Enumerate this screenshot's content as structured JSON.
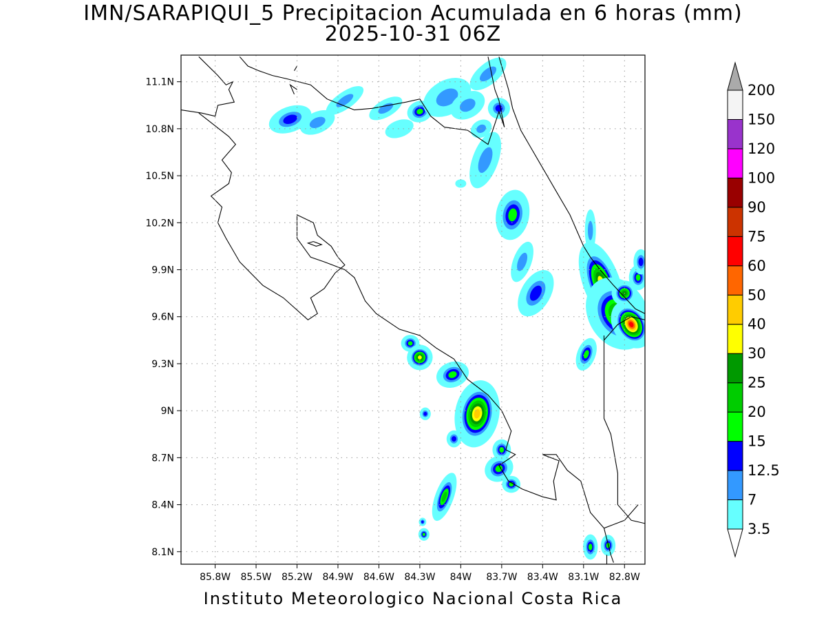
{
  "title": {
    "line1": "IMN/SARAPIQUI_5 Precipitacion Acumulada en 6 horas (mm)",
    "line2": "2025-10-31 06Z"
  },
  "footer": "Instituto Meteorologico Nacional Costa Rica",
  "map": {
    "lon_range": [
      -86.05,
      -82.65
    ],
    "lat_range": [
      8.02,
      11.27
    ],
    "lon_ticks": [
      -85.8,
      -85.5,
      -85.2,
      -84.9,
      -84.6,
      -84.3,
      -84.0,
      -83.7,
      -83.4,
      -83.1,
      -82.8
    ],
    "lon_labels": [
      "85.8W",
      "85.5W",
      "85.2W",
      "84.9W",
      "84.6W",
      "84.3W",
      "84W",
      "83.7W",
      "83.4W",
      "83.1W",
      "82.8W"
    ],
    "lat_ticks": [
      8.1,
      8.4,
      8.7,
      9.0,
      9.3,
      9.6,
      9.9,
      10.2,
      10.5,
      10.8,
      11.1
    ],
    "lat_labels": [
      "8.1N",
      "8.4N",
      "8.7N",
      "9N",
      "9.3N",
      "9.6N",
      "9.9N",
      "10.2N",
      "10.5N",
      "10.8N",
      "11.1N"
    ],
    "grid": "dotted"
  },
  "colorbar": {
    "labels": [
      "3.5",
      "7",
      "12.5",
      "15",
      "20",
      "25",
      "30",
      "40",
      "50",
      "60",
      "75",
      "90",
      "100",
      "120",
      "150",
      "200"
    ],
    "colors": [
      "#66ffff",
      "#3399ff",
      "#0000ff",
      "#00ff00",
      "#00cc00",
      "#009900",
      "#ffff00",
      "#ffcc00",
      "#ff6600",
      "#ff0000",
      "#cc3300",
      "#990000",
      "#ff00ff",
      "#9933cc",
      "#f4f4f4"
    ],
    "arrow_bottom": "#ffffff",
    "arrow_top": "#aaaaaa"
  },
  "precip_cells": [
    {
      "lon": -85.25,
      "lat": 10.86,
      "rx": 0.12,
      "ry": 0.06,
      "rot": -20,
      "level": 2
    },
    {
      "lon": -85.05,
      "lat": 10.84,
      "rx": 0.1,
      "ry": 0.05,
      "rot": -25,
      "level": 1
    },
    {
      "lon": -84.85,
      "lat": 10.98,
      "rx": 0.12,
      "ry": 0.04,
      "rot": -35,
      "level": 1
    },
    {
      "lon": -84.55,
      "lat": 10.93,
      "rx": 0.1,
      "ry": 0.04,
      "rot": -30,
      "level": 1
    },
    {
      "lon": -84.3,
      "lat": 10.91,
      "rx": 0.07,
      "ry": 0.05,
      "rot": -20,
      "level": 3
    },
    {
      "lon": -84.1,
      "lat": 11.0,
      "rx": 0.14,
      "ry": 0.08,
      "rot": -30,
      "level": 1
    },
    {
      "lon": -83.95,
      "lat": 10.95,
      "rx": 0.1,
      "ry": 0.06,
      "rot": -30,
      "level": 1
    },
    {
      "lon": -83.8,
      "lat": 11.15,
      "rx": 0.12,
      "ry": 0.05,
      "rot": -40,
      "level": 1
    },
    {
      "lon": -83.72,
      "lat": 10.93,
      "rx": 0.06,
      "ry": 0.05,
      "rot": 0,
      "level": 2
    },
    {
      "lon": -84.45,
      "lat": 10.8,
      "rx": 0.08,
      "ry": 0.04,
      "rot": -20,
      "level": 0
    },
    {
      "lon": -83.85,
      "lat": 10.8,
      "rx": 0.06,
      "ry": 0.04,
      "rot": -30,
      "level": 1
    },
    {
      "lon": -84.0,
      "lat": 10.45,
      "rx": 0.03,
      "ry": 0.02,
      "rot": 0,
      "level": 0
    },
    {
      "lon": -83.82,
      "lat": 10.6,
      "rx": 0.07,
      "ry": 0.14,
      "rot": 20,
      "level": 1
    },
    {
      "lon": -83.62,
      "lat": 10.25,
      "rx": 0.09,
      "ry": 0.12,
      "rot": 10,
      "level": 3
    },
    {
      "lon": -83.55,
      "lat": 9.95,
      "rx": 0.05,
      "ry": 0.1,
      "rot": 20,
      "level": 1
    },
    {
      "lon": -83.45,
      "lat": 9.75,
      "rx": 0.08,
      "ry": 0.12,
      "rot": 30,
      "level": 2
    },
    {
      "lon": -83.05,
      "lat": 10.15,
      "rx": 0.03,
      "ry": 0.1,
      "rot": 0,
      "level": 1
    },
    {
      "lon": -82.97,
      "lat": 9.82,
      "rx": 0.1,
      "ry": 0.2,
      "rot": -20,
      "level": 6
    },
    {
      "lon": -82.85,
      "lat": 9.62,
      "rx": 0.16,
      "ry": 0.18,
      "rot": -30,
      "level": 5
    },
    {
      "lon": -82.75,
      "lat": 9.55,
      "rx": 0.1,
      "ry": 0.12,
      "rot": -30,
      "level": 9
    },
    {
      "lon": -82.8,
      "lat": 9.75,
      "rx": 0.07,
      "ry": 0.06,
      "rot": 0,
      "level": 5
    },
    {
      "lon": -82.7,
      "lat": 9.85,
      "rx": 0.05,
      "ry": 0.06,
      "rot": 0,
      "level": 3
    },
    {
      "lon": -83.08,
      "lat": 9.36,
      "rx": 0.05,
      "ry": 0.08,
      "rot": 20,
      "level": 3
    },
    {
      "lon": -84.37,
      "lat": 9.43,
      "rx": 0.05,
      "ry": 0.04,
      "rot": 0,
      "level": 3
    },
    {
      "lon": -84.3,
      "lat": 9.34,
      "rx": 0.07,
      "ry": 0.06,
      "rot": -20,
      "level": 6
    },
    {
      "lon": -84.06,
      "lat": 9.23,
      "rx": 0.09,
      "ry": 0.06,
      "rot": -20,
      "level": 3
    },
    {
      "lon": -83.88,
      "lat": 8.98,
      "rx": 0.12,
      "ry": 0.16,
      "rot": 10,
      "level": 7
    },
    {
      "lon": -84.26,
      "lat": 8.98,
      "rx": 0.03,
      "ry": 0.03,
      "rot": 0,
      "level": 2
    },
    {
      "lon": -84.05,
      "lat": 8.82,
      "rx": 0.04,
      "ry": 0.04,
      "rot": 0,
      "level": 2
    },
    {
      "lon": -83.7,
      "lat": 8.75,
      "rx": 0.05,
      "ry": 0.05,
      "rot": 0,
      "level": 3
    },
    {
      "lon": -83.72,
      "lat": 8.63,
      "rx": 0.08,
      "ry": 0.06,
      "rot": -30,
      "level": 3
    },
    {
      "lon": -83.63,
      "lat": 8.53,
      "rx": 0.05,
      "ry": 0.04,
      "rot": 0,
      "level": 3
    },
    {
      "lon": -84.12,
      "lat": 8.45,
      "rx": 0.05,
      "ry": 0.12,
      "rot": 20,
      "level": 4
    },
    {
      "lon": -84.28,
      "lat": 8.29,
      "rx": 0.02,
      "ry": 0.02,
      "rot": 0,
      "level": 2
    },
    {
      "lon": -84.27,
      "lat": 8.21,
      "rx": 0.03,
      "ry": 0.03,
      "rot": 0,
      "level": 3
    },
    {
      "lon": -83.05,
      "lat": 8.13,
      "rx": 0.04,
      "ry": 0.06,
      "rot": 0,
      "level": 3
    },
    {
      "lon": -82.92,
      "lat": 8.14,
      "rx": 0.04,
      "ry": 0.05,
      "rot": 0,
      "level": 3
    },
    {
      "lon": -82.68,
      "lat": 9.95,
      "rx": 0.04,
      "ry": 0.06,
      "rot": 0,
      "level": 2
    }
  ],
  "coastlines": [
    [
      [
        -85.92,
        11.26
      ],
      [
        -85.78,
        11.14
      ],
      [
        -85.72,
        11.08
      ],
      [
        -85.67,
        11.1
      ],
      [
        -85.7,
        11.05
      ],
      [
        -85.66,
        10.97
      ],
      [
        -85.78,
        10.95
      ],
      [
        -85.8,
        10.88
      ],
      [
        -85.9,
        10.9
      ],
      [
        -86.05,
        10.92
      ]
    ],
    [
      [
        -85.62,
        11.26
      ],
      [
        -85.56,
        11.2
      ],
      [
        -85.48,
        11.17
      ],
      [
        -85.38,
        11.14
      ],
      [
        -85.28,
        11.12
      ],
      [
        -85.1,
        11.08
      ],
      [
        -84.98,
        10.99
      ],
      [
        -84.78,
        10.92
      ],
      [
        -84.65,
        10.93
      ],
      [
        -84.4,
        10.97
      ],
      [
        -84.3,
        10.99
      ],
      [
        -84.22,
        10.88
      ],
      [
        -84.12,
        10.81
      ],
      [
        -83.95,
        10.79
      ],
      [
        -83.85,
        10.73
      ],
      [
        -83.8,
        10.7
      ],
      [
        -83.72,
        10.91
      ],
      [
        -83.68,
        10.81
      ],
      [
        -83.72,
        10.98
      ],
      [
        -83.75,
        11.05
      ],
      [
        -83.8,
        11.26
      ]
    ],
    [
      [
        -85.92,
        10.9
      ],
      [
        -85.7,
        10.75
      ],
      [
        -85.65,
        10.7
      ],
      [
        -85.75,
        10.6
      ],
      [
        -85.68,
        10.52
      ],
      [
        -85.7,
        10.45
      ],
      [
        -85.83,
        10.37
      ],
      [
        -85.75,
        10.3
      ],
      [
        -85.78,
        10.2
      ],
      [
        -85.72,
        10.1
      ],
      [
        -85.62,
        9.95
      ],
      [
        -85.45,
        9.8
      ],
      [
        -85.3,
        9.72
      ],
      [
        -85.12,
        9.58
      ],
      [
        -85.05,
        9.62
      ],
      [
        -85.1,
        9.72
      ],
      [
        -85.0,
        9.78
      ],
      [
        -84.92,
        9.88
      ],
      [
        -84.85,
        9.93
      ],
      [
        -84.9,
        9.98
      ],
      [
        -84.95,
        10.05
      ],
      [
        -85.05,
        10.12
      ],
      [
        -85.08,
        10.2
      ],
      [
        -85.2,
        10.25
      ],
      [
        -85.2,
        10.1
      ],
      [
        -85.1,
        9.98
      ],
      [
        -85.0,
        9.95
      ],
      [
        -84.85,
        9.9
      ],
      [
        -84.78,
        9.85
      ],
      [
        -84.7,
        9.7
      ],
      [
        -84.62,
        9.62
      ],
      [
        -84.45,
        9.52
      ],
      [
        -84.3,
        9.48
      ],
      [
        -84.18,
        9.4
      ],
      [
        -84.05,
        9.33
      ],
      [
        -83.95,
        9.2
      ],
      [
        -83.8,
        9.1
      ],
      [
        -83.7,
        9.0
      ],
      [
        -83.63,
        8.87
      ],
      [
        -83.67,
        8.75
      ],
      [
        -83.6,
        8.72
      ],
      [
        -83.72,
        8.65
      ],
      [
        -83.65,
        8.55
      ],
      [
        -83.55,
        8.5
      ],
      [
        -83.4,
        8.45
      ],
      [
        -83.3,
        8.43
      ],
      [
        -83.32,
        8.55
      ],
      [
        -83.28,
        8.68
      ],
      [
        -83.4,
        8.72
      ],
      [
        -83.3,
        8.72
      ],
      [
        -83.22,
        8.62
      ],
      [
        -83.12,
        8.55
      ],
      [
        -83.05,
        8.35
      ],
      [
        -82.95,
        8.25
      ],
      [
        -82.9,
        8.08
      ],
      [
        -82.88,
        8.03
      ]
    ],
    [
      [
        -82.7,
        8.4
      ],
      [
        -82.8,
        8.3
      ],
      [
        -82.95,
        8.25
      ]
    ],
    [
      [
        -85.22,
        11.17
      ],
      [
        -85.2,
        11.2
      ]
    ],
    [
      [
        -83.72,
        11.26
      ],
      [
        -83.65,
        11.05
      ],
      [
        -83.62,
        10.93
      ],
      [
        -83.56,
        10.79
      ],
      [
        -83.5,
        10.7
      ],
      [
        -83.4,
        10.55
      ],
      [
        -83.3,
        10.4
      ],
      [
        -83.2,
        10.25
      ],
      [
        -83.1,
        10.05
      ],
      [
        -83.05,
        9.98
      ],
      [
        -82.98,
        9.9
      ],
      [
        -82.88,
        9.8
      ],
      [
        -82.72,
        9.65
      ],
      [
        -82.65,
        9.62
      ]
    ],
    [
      [
        -85.2,
        11.05
      ],
      [
        -85.25,
        11.08
      ],
      [
        -85.22,
        11.02
      ]
    ],
    [
      [
        -85.08,
        10.08
      ],
      [
        -85.02,
        10.06
      ],
      [
        -85.06,
        10.05
      ],
      [
        -85.12,
        10.07
      ],
      [
        -85.08,
        10.08
      ]
    ],
    [
      [
        -82.95,
        9.45
      ],
      [
        -82.85,
        9.55
      ],
      [
        -82.75,
        9.6
      ],
      [
        -82.65,
        9.58
      ]
    ],
    [
      [
        -82.95,
        9.48
      ],
      [
        -82.95,
        9.2
      ],
      [
        -82.95,
        8.95
      ],
      [
        -82.9,
        8.85
      ],
      [
        -82.85,
        8.6
      ],
      [
        -82.85,
        8.4
      ],
      [
        -82.75,
        8.3
      ],
      [
        -82.65,
        8.28
      ]
    ],
    [
      [
        -82.93,
        8.08
      ],
      [
        -82.93,
        8.02
      ]
    ]
  ]
}
